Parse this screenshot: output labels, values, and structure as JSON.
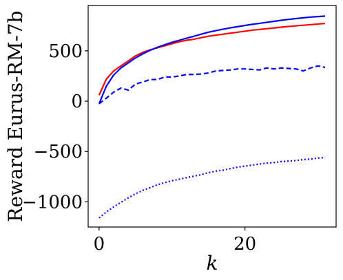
{
  "chart_data": {
    "type": "line",
    "title": "",
    "xlabel": "k",
    "ylabel": "Reward Eurus-RM-7b",
    "xlim": [
      -1.5,
      32.5
    ],
    "ylim": [
      -1250,
      950
    ],
    "xticks": [
      0,
      20
    ],
    "xtick_labels": [
      "0",
      "20"
    ],
    "yticks": [
      -1000,
      -500,
      0,
      500
    ],
    "ytick_labels": [
      "−1000",
      "−500",
      "0",
      "500"
    ],
    "grid": false,
    "legend": null,
    "x": [
      0,
      1,
      2,
      3,
      4,
      5,
      6,
      7,
      8,
      9,
      10,
      11,
      12,
      13,
      14,
      15,
      16,
      17,
      18,
      19,
      20,
      21,
      22,
      23,
      24,
      25,
      26,
      27,
      28,
      29,
      30,
      31
    ],
    "series": [
      {
        "color": "#ff0000",
        "style": "solid",
        "values": [
          60,
          220,
          300,
          350,
          400,
          450,
          485,
          510,
          530,
          550,
          570,
          590,
          605,
          615,
          630,
          645,
          655,
          665,
          675,
          685,
          695,
          705,
          712,
          720,
          727,
          735,
          742,
          748,
          754,
          760,
          766,
          772
        ]
      },
      {
        "color": "#0000ff",
        "style": "solid",
        "values": [
          -25,
          150,
          260,
          330,
          380,
          430,
          470,
          505,
          535,
          560,
          585,
          605,
          625,
          645,
          665,
          685,
          700,
          715,
          728,
          740,
          752,
          763,
          773,
          783,
          793,
          803,
          812,
          820,
          828,
          835,
          840,
          845
        ]
      },
      {
        "color": "#0000ff",
        "style": "dashed",
        "values": [
          -25,
          30,
          90,
          130,
          110,
          170,
          190,
          215,
          215,
          240,
          240,
          250,
          265,
          265,
          270,
          280,
          300,
          305,
          310,
          320,
          320,
          315,
          310,
          330,
          320,
          330,
          325,
          320,
          300,
          330,
          350,
          335
        ]
      },
      {
        "color": "#0000ff",
        "style": "dotted",
        "values": [
          -1160,
          -1100,
          -1050,
          -1005,
          -960,
          -920,
          -885,
          -860,
          -830,
          -810,
          -790,
          -775,
          -760,
          -745,
          -730,
          -710,
          -695,
          -685,
          -670,
          -655,
          -645,
          -635,
          -625,
          -615,
          -610,
          -600,
          -595,
          -590,
          -580,
          -575,
          -565,
          -560
        ]
      }
    ]
  }
}
